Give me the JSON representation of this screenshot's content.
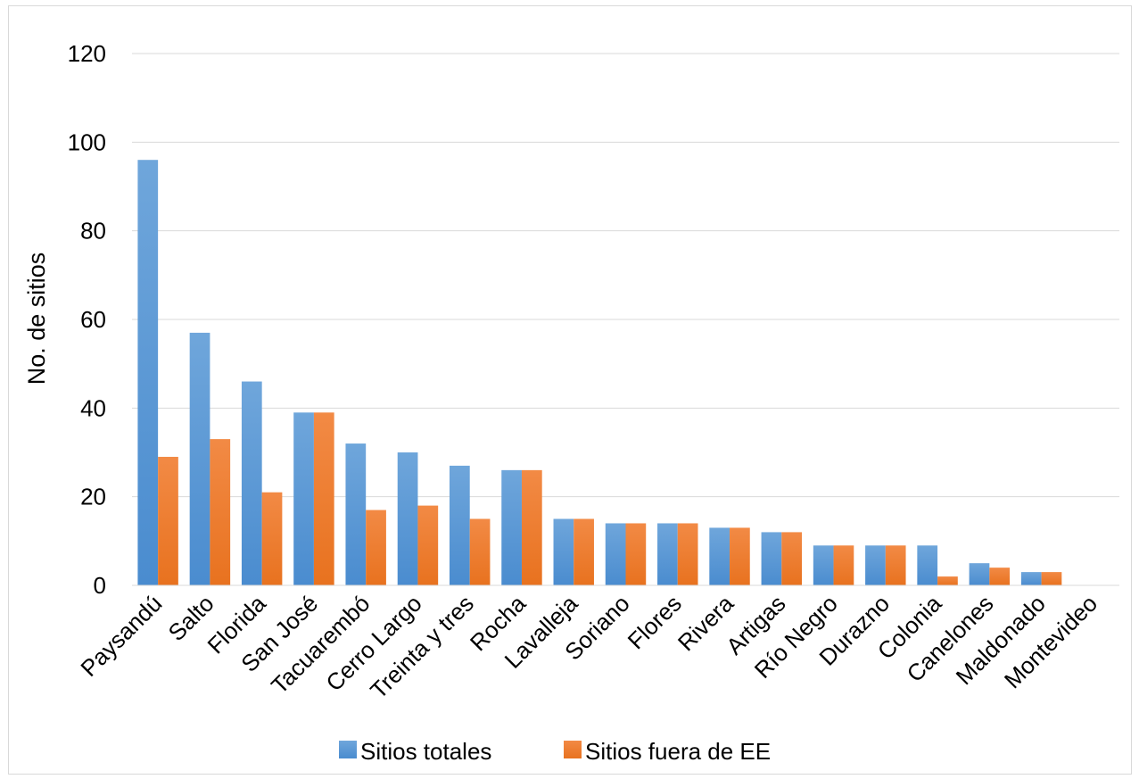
{
  "chart_data": {
    "type": "bar",
    "title": "",
    "xlabel": "",
    "ylabel": "No. de sitios",
    "ylim": [
      0,
      120
    ],
    "yticks": [
      0,
      20,
      40,
      60,
      80,
      100,
      120
    ],
    "grid": true,
    "legend_position": "bottom",
    "categories": [
      "Paysandú",
      "Salto",
      "Florida",
      "San José",
      "Tacuarembó",
      "Cerro Largo",
      "Treinta y tres",
      "Rocha",
      "Lavalleja",
      "Soriano",
      "Flores",
      "Rivera",
      "Artigas",
      "Río Negro",
      "Durazno",
      "Colonia",
      "Canelones",
      "Maldonado",
      "Montevideo"
    ],
    "series": [
      {
        "name": "Sitios totales",
        "color": "#5b9bd5",
        "values": [
          96,
          57,
          46,
          39,
          32,
          30,
          27,
          26,
          15,
          14,
          14,
          13,
          12,
          9,
          9,
          9,
          5,
          3,
          0
        ]
      },
      {
        "name": "Sitios fuera de EE",
        "color": "#ed7d31",
        "values": [
          29,
          33,
          21,
          39,
          17,
          18,
          15,
          26,
          15,
          14,
          14,
          13,
          12,
          9,
          9,
          2,
          4,
          3,
          0
        ]
      }
    ]
  }
}
